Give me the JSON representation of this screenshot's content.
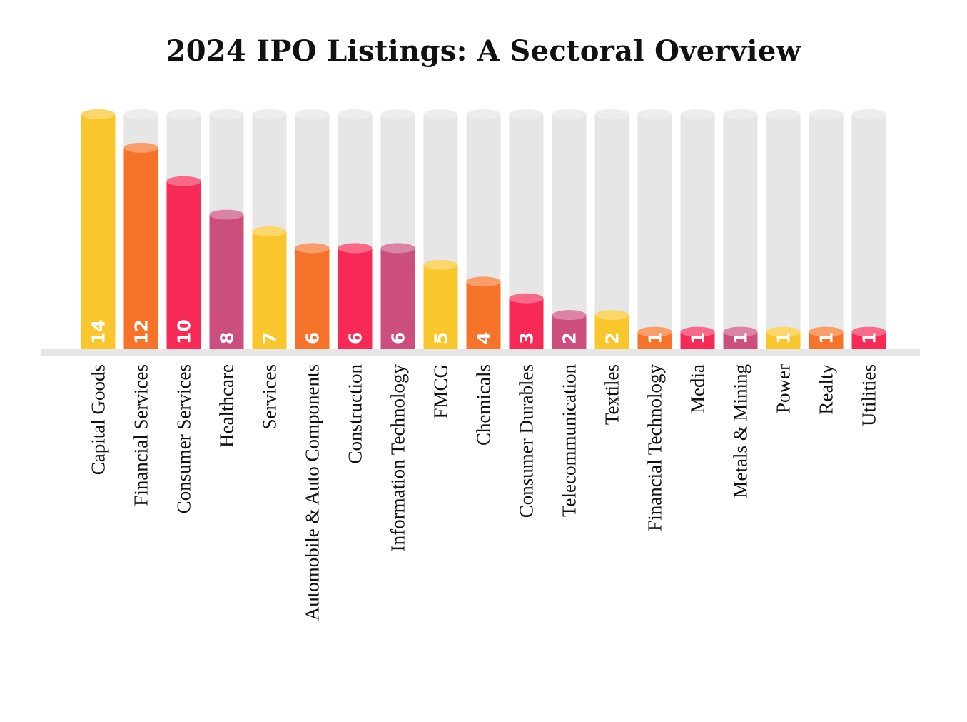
{
  "chart_data": {
    "type": "bar",
    "title": "2024 IPO Listings: A Sectoral Overview",
    "xlabel": "",
    "ylabel": "",
    "ylim": [
      0,
      14
    ],
    "grid": false,
    "legend": "none",
    "categories": [
      "Capital Goods",
      "Financial Services",
      "Consumer Services",
      "Healthcare",
      "Services",
      "Automobile & Auto Components",
      "Construction",
      "Information Technology",
      "FMCG",
      "Chemicals",
      "Consumer Durables",
      "Telecommunication",
      "Textiles",
      "Financial Technology",
      "Media",
      "Metals & Mining",
      "Power",
      "Realty",
      "Utilities"
    ],
    "values": [
      14,
      12,
      10,
      8,
      7,
      6,
      6,
      6,
      5,
      4,
      3,
      2,
      2,
      1,
      1,
      1,
      1,
      1,
      1
    ],
    "value_labels": [
      "14",
      "12",
      "10",
      "8",
      "7",
      "6",
      "6",
      "6",
      "5",
      "4",
      "3",
      "2",
      "2",
      "1",
      "1",
      "1",
      "1",
      "1",
      "1"
    ],
    "palette": [
      "#F9C62B",
      "#F7732A",
      "#F72A57",
      "#CC4E7F"
    ],
    "track_color": "#E6E6E6",
    "baseline_color": "#E6E6E6"
  }
}
